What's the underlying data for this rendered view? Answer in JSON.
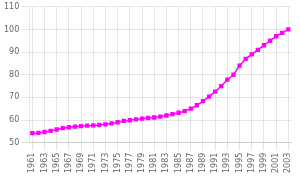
{
  "chart_data": {
    "type": "line",
    "x": [
      1961,
      1962,
      1963,
      1964,
      1965,
      1966,
      1967,
      1968,
      1969,
      1970,
      1971,
      1972,
      1973,
      1974,
      1975,
      1976,
      1977,
      1978,
      1979,
      1980,
      1981,
      1982,
      1983,
      1984,
      1985,
      1986,
      1987,
      1988,
      1989,
      1990,
      1991,
      1992,
      1993,
      1994,
      1995,
      1996,
      1997,
      1998,
      1999,
      2000,
      2001,
      2002,
      2003
    ],
    "values": [
      54.2,
      54.3,
      54.7,
      55.2,
      55.8,
      56.4,
      56.8,
      57.1,
      57.3,
      57.5,
      57.6,
      57.8,
      58.1,
      58.5,
      59.0,
      59.6,
      59.9,
      60.3,
      60.6,
      60.9,
      61.1,
      61.5,
      62.0,
      62.6,
      63.2,
      63.9,
      65.0,
      66.5,
      68.3,
      70.3,
      72.5,
      75.0,
      77.8,
      80.0,
      84.0,
      87.0,
      89.0,
      91.0,
      93.0,
      95.0,
      97.0,
      98.5,
      100.0
    ],
    "color": "#ff00ff",
    "marker": "square",
    "xlim": [
      1960.5,
      2003.5
    ],
    "xticks": [
      1961,
      1963,
      1965,
      1967,
      1969,
      1971,
      1973,
      1975,
      1977,
      1979,
      1981,
      1983,
      1985,
      1987,
      1989,
      1991,
      1993,
      1995,
      1997,
      1999,
      2001,
      2003
    ],
    "ylim": [
      50,
      110
    ],
    "yticks": [
      50,
      60,
      70,
      80,
      90,
      100,
      110
    ],
    "grid": true
  }
}
